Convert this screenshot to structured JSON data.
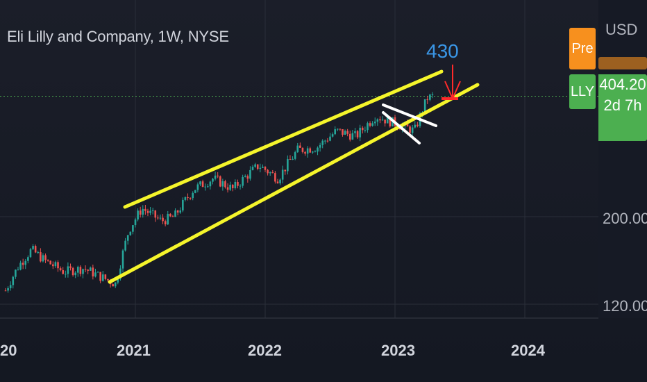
{
  "header": {
    "title": "Eli Lilly and Company, 1W, NYSE"
  },
  "price_axis": {
    "currency": "USD",
    "ticks": [
      "200.00",
      "120.00"
    ]
  },
  "badges": {
    "pre_label": "Pre",
    "symbol_label": "LLY",
    "last_price": "404.20",
    "countdown": "2d 7h",
    "pre_color": "#f7901e",
    "symbol_color": "#4caf50"
  },
  "annotation": {
    "target_label": "430"
  },
  "colors": {
    "up": "#26a69a",
    "down": "#ef5350",
    "channel": "#f5f52b",
    "wedge": "#ffffff",
    "arrow": "#ff2a2a",
    "target_text": "#3a96e6",
    "last_price_line": "#4caf50"
  },
  "chart_data": {
    "type": "candlestick",
    "title": "Eli Lilly and Company, 1W, NYSE",
    "x_ticks": [
      "20",
      "2021",
      "2022",
      "2023",
      "2024"
    ],
    "y_ticks": [
      200,
      120
    ],
    "y_scale": "log",
    "series": [
      {
        "name": "LLY",
        "points": [
          {
            "x": 2020.0,
            "y": 130
          },
          {
            "x": 2020.1,
            "y": 150
          },
          {
            "x": 2020.2,
            "y": 165
          },
          {
            "x": 2020.3,
            "y": 155
          },
          {
            "x": 2020.45,
            "y": 145
          },
          {
            "x": 2020.6,
            "y": 148
          },
          {
            "x": 2020.75,
            "y": 140
          },
          {
            "x": 2020.85,
            "y": 135
          },
          {
            "x": 2020.95,
            "y": 185
          },
          {
            "x": 2021.05,
            "y": 210
          },
          {
            "x": 2021.2,
            "y": 195
          },
          {
            "x": 2021.3,
            "y": 200
          },
          {
            "x": 2021.45,
            "y": 235
          },
          {
            "x": 2021.6,
            "y": 250
          },
          {
            "x": 2021.75,
            "y": 235
          },
          {
            "x": 2021.95,
            "y": 270
          },
          {
            "x": 2022.1,
            "y": 250
          },
          {
            "x": 2022.25,
            "y": 295
          },
          {
            "x": 2022.4,
            "y": 300
          },
          {
            "x": 2022.55,
            "y": 330
          },
          {
            "x": 2022.7,
            "y": 320
          },
          {
            "x": 2022.85,
            "y": 360
          },
          {
            "x": 2023.05,
            "y": 340
          },
          {
            "x": 2023.15,
            "y": 330
          },
          {
            "x": 2023.25,
            "y": 400
          },
          {
            "x": 2023.3,
            "y": 404.2
          }
        ]
      }
    ],
    "last_price": 404.2,
    "annotations": {
      "target": 430,
      "rising_channel": "yellow",
      "falling_wedge": "white"
    }
  }
}
